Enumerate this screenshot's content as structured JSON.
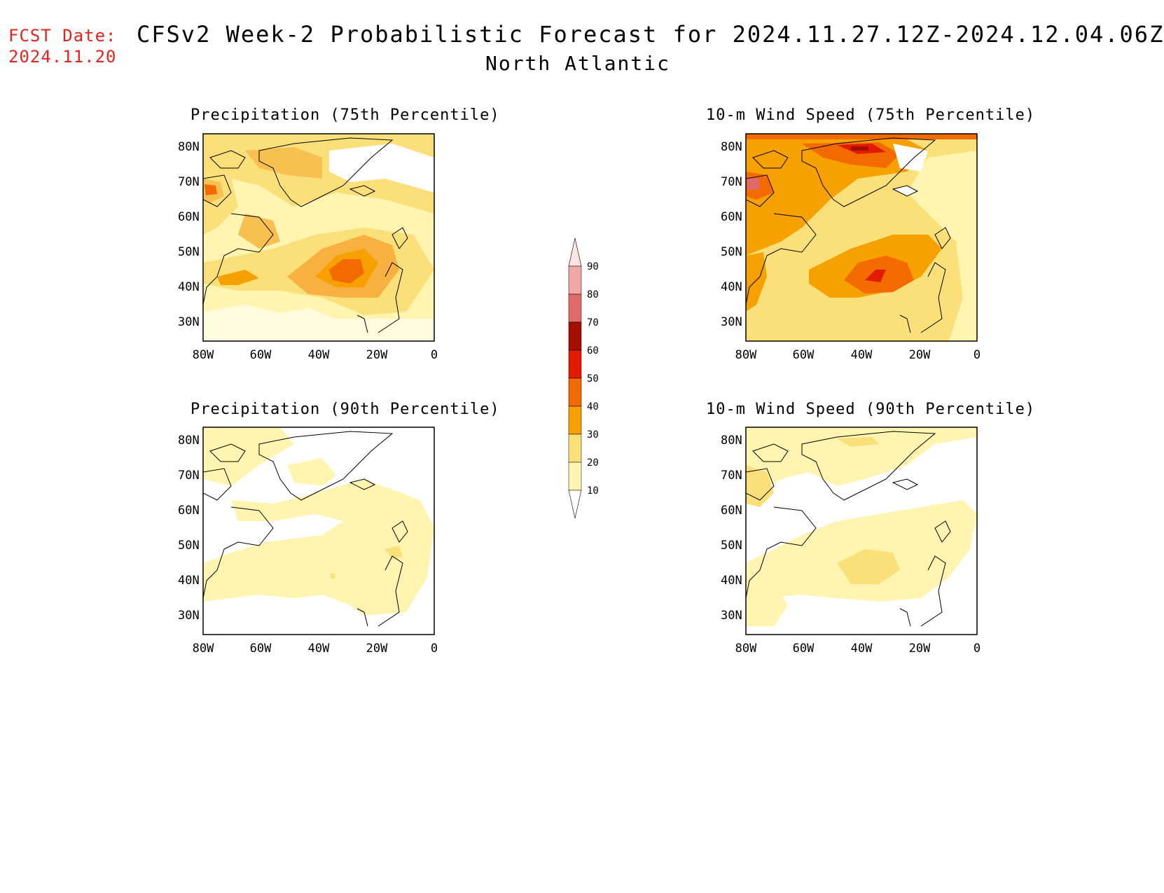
{
  "header": {
    "fcst_label": "FCST Date:",
    "fcst_date": "2024.11.20",
    "title": "CFSv2 Week-2 Probabilistic Forecast for 2024.11.27.12Z-2024.12.04.06Z",
    "region": "North Atlantic"
  },
  "axes": {
    "lat_labels": [
      "80N",
      "70N",
      "60N",
      "50N",
      "40N",
      "30N"
    ],
    "lon_labels": [
      "80W",
      "60W",
      "40W",
      "20W",
      "0"
    ]
  },
  "panels": [
    {
      "title": "Precipitation (75th Percentile)"
    },
    {
      "title": "10-m Wind Speed (75th Percentile)"
    },
    {
      "title": "Precipitation (90th Percentile)"
    },
    {
      "title": "10-m Wind Speed (90th Percentile)"
    }
  ],
  "colorbar": {
    "levels": [
      "10",
      "20",
      "30",
      "40",
      "50",
      "60",
      "70",
      "80",
      "90"
    ],
    "colors": [
      "#ffffff",
      "#fff5b0",
      "#fbe07a",
      "#f6a100",
      "#f26a00",
      "#e21b00",
      "#a50d00",
      "#e06a6a",
      "#f2a8a8",
      "#fde4e4"
    ]
  }
}
